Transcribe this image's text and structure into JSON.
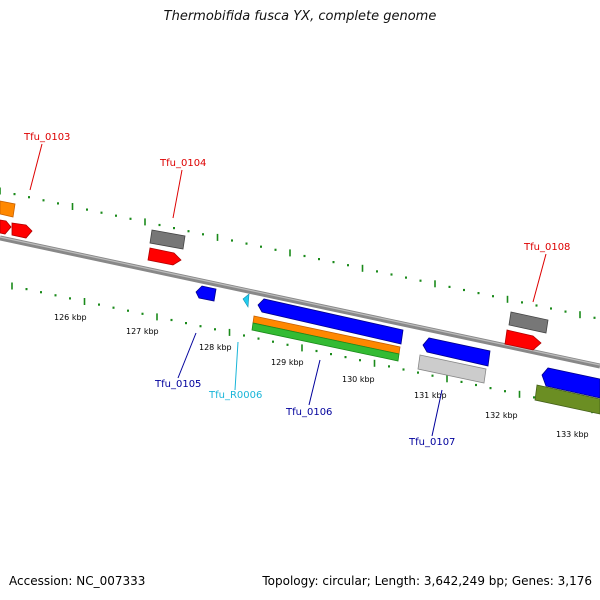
{
  "title": "Thermobifida fusca YX, complete genome",
  "footer": {
    "accession": "Accession: NC_007333",
    "stats": "Topology: circular; Length: 3,642,249 bp; Genes: 3,176"
  },
  "colors": {
    "backbone": "#888888",
    "tick_green": "#1a8a1a",
    "forward_label": "#dd0000",
    "reverse_label": "#00009c",
    "rna_label": "#19b5d8",
    "red": "#ff0000",
    "gray": "#777777",
    "orange": "#ff8800",
    "blue": "#0000ff",
    "green": "#33bb33",
    "lightgray": "#cccccc",
    "olive": "#6b8e23",
    "cyan": "#22ccee"
  },
  "scale_labels": [
    "126 kbp",
    "127 kbp",
    "128 kbp",
    "129 kbp",
    "130 kbp",
    "131 kbp",
    "132 kbp",
    "133 kbp"
  ],
  "gene_labels": [
    {
      "id": "tfu-0103",
      "text": "Tfu_0103",
      "strand": "forward"
    },
    {
      "id": "tfu-0104",
      "text": "Tfu_0104",
      "strand": "forward"
    },
    {
      "id": "tfu-0108",
      "text": "Tfu_0108",
      "strand": "forward"
    },
    {
      "id": "tfu-0105",
      "text": "Tfu_0105",
      "strand": "reverse"
    },
    {
      "id": "tfu-r0006",
      "text": "Tfu_R0006",
      "strand": "rna"
    },
    {
      "id": "tfu-0106",
      "text": "Tfu_0106",
      "strand": "reverse"
    },
    {
      "id": "tfu-0107",
      "text": "Tfu_0107",
      "strand": "reverse"
    }
  ]
}
